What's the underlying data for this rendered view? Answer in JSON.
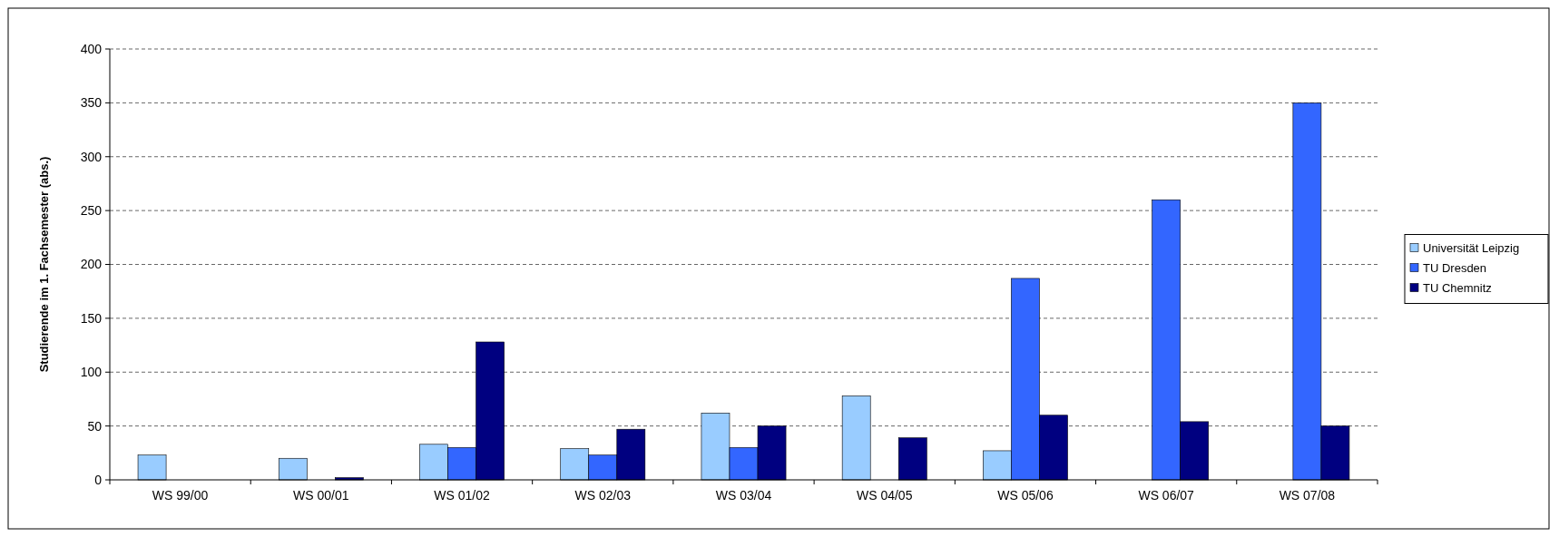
{
  "chart_data": {
    "type": "bar",
    "ylabel": "Studierende im 1. Fachsemester (abs.)",
    "categories": [
      "WS 99/00",
      "WS 00/01",
      "WS 01/02",
      "WS 02/03",
      "WS 03/04",
      "WS 04/05",
      "WS 05/06",
      "WS 06/07",
      "WS 07/08"
    ],
    "series": [
      {
        "name": "Universität Leipzig",
        "color": "#99ccff",
        "values": [
          23,
          20,
          33,
          29,
          62,
          78,
          27,
          null,
          null
        ]
      },
      {
        "name": "TU Dresden",
        "color": "#3366ff",
        "values": [
          null,
          null,
          30,
          23,
          30,
          null,
          187,
          260,
          350
        ]
      },
      {
        "name": "TU Chemnitz",
        "color": "#000080",
        "values": [
          null,
          2,
          128,
          47,
          50,
          39,
          60,
          54,
          50
        ]
      }
    ],
    "ylim": [
      0,
      400
    ],
    "yticks": [
      0,
      50,
      100,
      150,
      200,
      250,
      300,
      350,
      400
    ],
    "grid": "y",
    "legend": "right"
  }
}
